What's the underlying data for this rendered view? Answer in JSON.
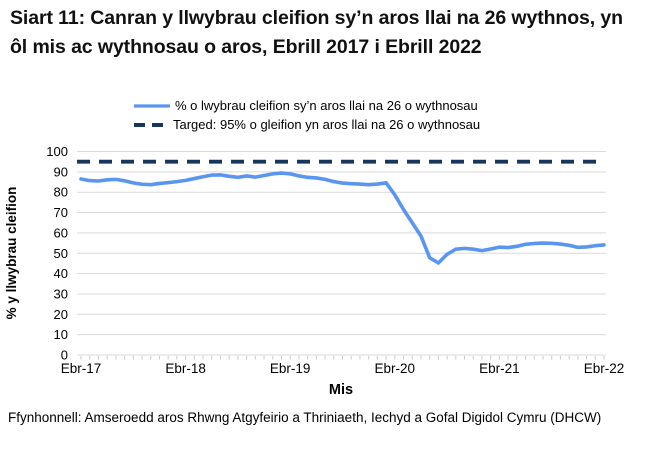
{
  "title": "Siart 11: Canran y llwybrau cleifion sy’n aros llai na 26 wythnos, yn ôl mis ac wythnosau o aros, Ebrill 2017 i Ebrill 2022",
  "legend": [
    {
      "label": "% o lwybrau cleifion sy’n aros llai na 26 o wythnosau",
      "color": "#5A96F0",
      "style": "solid"
    },
    {
      "label": "Targed: 95% o gleifion yn aros llai na 26 o wythnosau",
      "color": "#17365D",
      "style": "dashed"
    }
  ],
  "chart_data": {
    "type": "line",
    "title": "Siart 11: Canran y llwybrau cleifion sy’n aros llai na 26 wythnos, yn ôl mis ac wythnosau o aros, Ebrill 2017 i Ebrill 2022",
    "xlabel": "Mis",
    "ylabel": "% y llwybrau cleifion",
    "ylim": [
      0,
      100
    ],
    "ytick_step": 10,
    "y_tick_labels": [
      "0",
      "10",
      "20",
      "30",
      "40",
      "50",
      "60",
      "70",
      "80",
      "90",
      "100"
    ],
    "x_tick_labels": [
      "Ebr-17",
      "Ebr-18",
      "Ebr-19",
      "Ebr-20",
      "Ebr-21",
      "Ebr-22"
    ],
    "x_frequency": "monthly",
    "x_range": "Ebrill 2017 - Ebrill 2022",
    "grid": "horizontal",
    "legend_position": "top",
    "series": [
      {
        "name": "% o lwybrau cleifion sy’n aros llai na 26 o wythnosau",
        "color": "#5A96F0",
        "style": "solid",
        "values": [
          86.5,
          85.7,
          85.5,
          86.1,
          86.3,
          85.6,
          84.6,
          83.9,
          83.7,
          84.3,
          84.7,
          85.2,
          85.8,
          86.7,
          87.6,
          88.4,
          88.5,
          87.8,
          87.3,
          88.0,
          87.4,
          88.2,
          89.0,
          89.4,
          89.0,
          88.0,
          87.3,
          87.0,
          86.3,
          85.2,
          84.5,
          84.2,
          84.0,
          83.7,
          84.0,
          84.6,
          78.7,
          71.5,
          65.0,
          58.5,
          47.8,
          45.2,
          49.5,
          52.0,
          52.4,
          52.0,
          51.3,
          52.1,
          53.0,
          52.8,
          53.4,
          54.4,
          54.8,
          55.0,
          54.9,
          54.5,
          53.9,
          52.9,
          53.1,
          53.7,
          54.1
        ]
      },
      {
        "name": "Targed: 95% o gleifion yn aros llai na 26 o wythnosau",
        "color": "#17365D",
        "style": "dashed",
        "value": 95
      }
    ]
  },
  "footer": "Ffynhonnell: Amseroedd aros Rhwng Atgyfeirio a Thriniaeth, Iechyd a Gofal Digidol Cymru (DHCW)",
  "colors": {
    "gridline": "#D9D9D9",
    "tick": "#C9C9C9",
    "text": "#000000",
    "line": "#5A96F0",
    "target": "#17365D"
  }
}
